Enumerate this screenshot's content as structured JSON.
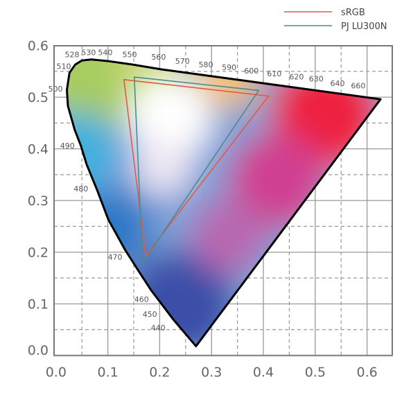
{
  "chart_data": {
    "type": "line",
    "title": "",
    "xlabel": "",
    "ylabel": "",
    "xlim": [
      0.0,
      0.6
    ],
    "ylim": [
      0.0,
      0.6
    ],
    "grid": true,
    "legend_position": "top-right",
    "x_ticks": [
      "0.0",
      "0.1",
      "0.2",
      "0.3",
      "0.4",
      "0.5",
      "0.6"
    ],
    "y_ticks": [
      "0.0",
      "0.1",
      "0.2",
      "0.3",
      "0.4",
      "0.5",
      "0.6"
    ],
    "spectral_locus": [
      [
        0.27,
        0.018
      ],
      [
        0.226,
        0.07
      ],
      [
        0.183,
        0.127
      ],
      [
        0.159,
        0.164
      ],
      [
        0.133,
        0.205
      ],
      [
        0.101,
        0.263
      ],
      [
        0.079,
        0.321
      ],
      [
        0.059,
        0.37
      ],
      [
        0.048,
        0.406
      ],
      [
        0.036,
        0.437
      ],
      [
        0.023,
        0.483
      ],
      [
        0.021,
        0.514
      ],
      [
        0.026,
        0.547
      ],
      [
        0.037,
        0.563
      ],
      [
        0.05,
        0.571
      ],
      [
        0.068,
        0.573
      ],
      [
        0.099,
        0.57
      ],
      [
        0.148,
        0.563
      ],
      [
        0.202,
        0.554
      ],
      [
        0.626,
        0.496
      ]
    ],
    "wavelength_labels": [
      {
        "text": "528",
        "u": 0.031,
        "v": 0.583
      },
      {
        "text": "530",
        "u": 0.063,
        "v": 0.587
      },
      {
        "text": "540",
        "u": 0.095,
        "v": 0.587
      },
      {
        "text": "550",
        "u": 0.142,
        "v": 0.583
      },
      {
        "text": "560",
        "u": 0.198,
        "v": 0.578
      },
      {
        "text": "570",
        "u": 0.244,
        "v": 0.57
      },
      {
        "text": "580",
        "u": 0.289,
        "v": 0.563
      },
      {
        "text": "590",
        "u": 0.334,
        "v": 0.558
      },
      {
        "text": "600",
        "u": 0.377,
        "v": 0.551
      },
      {
        "text": "610",
        "u": 0.421,
        "v": 0.546
      },
      {
        "text": "620",
        "u": 0.464,
        "v": 0.54
      },
      {
        "text": "630",
        "u": 0.502,
        "v": 0.536
      },
      {
        "text": "640",
        "u": 0.543,
        "v": 0.527
      },
      {
        "text": "660",
        "u": 0.583,
        "v": 0.522
      },
      {
        "text": "510",
        "u": 0.015,
        "v": 0.56
      },
      {
        "text": "500",
        "u": -0.001,
        "v": 0.516
      },
      {
        "text": "490",
        "u": 0.022,
        "v": 0.406
      },
      {
        "text": "480",
        "u": 0.048,
        "v": 0.323
      },
      {
        "text": "470",
        "u": 0.114,
        "v": 0.191
      },
      {
        "text": "460",
        "u": 0.165,
        "v": 0.109
      },
      {
        "text": "450",
        "u": 0.181,
        "v": 0.08
      },
      {
        "text": "440",
        "u": 0.197,
        "v": 0.054
      }
    ],
    "series": [
      {
        "name": "sRGB",
        "color": "#e05a48",
        "points": [
          [
            0.131,
            0.534
          ],
          [
            0.41,
            0.502
          ],
          [
            0.173,
            0.193
          ]
        ]
      },
      {
        "name": "PJ LU300N",
        "color": "#4a8c8a",
        "points": [
          [
            0.151,
            0.539
          ],
          [
            0.391,
            0.513
          ],
          [
            0.167,
            0.179
          ]
        ]
      }
    ]
  }
}
